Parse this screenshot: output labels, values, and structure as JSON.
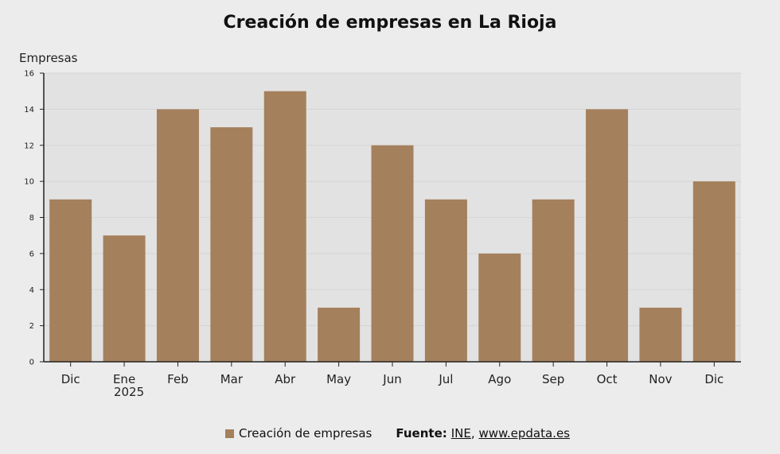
{
  "chart_data": {
    "type": "bar",
    "title": "Creación de empresas en La Rioja",
    "ylabel": "Empresas",
    "xlabel": "",
    "categories": [
      "Dic",
      "Ene",
      "Feb",
      "Mar",
      "Abr",
      "May",
      "Jun",
      "Jul",
      "Ago",
      "Sep",
      "Oct",
      "Nov",
      "Dic"
    ],
    "category_sublabels": [
      "",
      "2025",
      "",
      "",
      "",
      "",
      "",
      "",
      "",
      "",
      "",
      "",
      ""
    ],
    "series": [
      {
        "name": "Creación de empresas",
        "values": [
          9,
          7,
          14,
          13,
          15,
          3,
          12,
          9,
          6,
          9,
          14,
          3,
          10
        ]
      }
    ],
    "ylim": [
      0,
      16
    ],
    "yticks": [
      0,
      2,
      4,
      6,
      8,
      10,
      12,
      14,
      16
    ],
    "grid": true,
    "legend_position": "bottom",
    "colors": {
      "bar": "#a5805c",
      "plot_bg": "#e2e2e2",
      "grid": "#d5d5d5",
      "axis": "#222222"
    }
  },
  "legend": {
    "label": "Creación de empresas"
  },
  "source": {
    "label": "Fuente:",
    "links": [
      "INE",
      "www.epdata.es"
    ],
    "separator": ","
  }
}
